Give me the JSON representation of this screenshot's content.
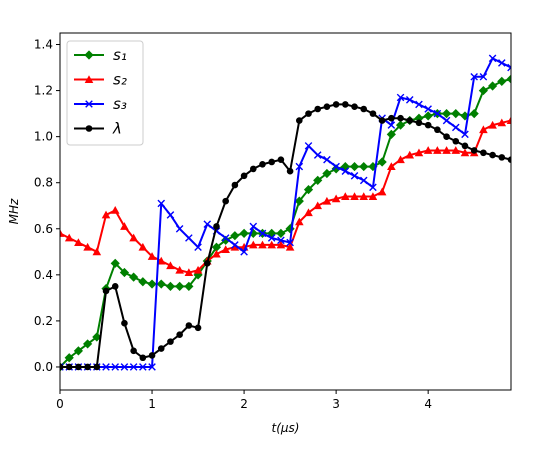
{
  "chart_data": {
    "type": "line",
    "xlabel": "t(μs)",
    "ylabel": "MHz",
    "xlim": [
      0,
      4.9
    ],
    "ylim": [
      -0.1,
      1.45
    ],
    "xticks": [
      0,
      1,
      2,
      3,
      4
    ],
    "yticks": [
      0.0,
      0.2,
      0.4,
      0.6,
      0.8,
      1.0,
      1.2,
      1.4
    ],
    "xtick_labels": [
      "0",
      "1",
      "2",
      "3",
      "4"
    ],
    "ytick_labels": [
      "0.0",
      "0.2",
      "0.4",
      "0.6",
      "0.8",
      "1.0",
      "1.2",
      "1.4"
    ],
    "grid": false,
    "legend_position": "upper-left",
    "series": [
      {
        "name": "s₁",
        "color": "#008000",
        "marker": "diamond",
        "x": [
          0,
          0.1,
          0.2,
          0.3,
          0.4,
          0.5,
          0.6,
          0.7,
          0.8,
          0.9,
          1.0,
          1.1,
          1.2,
          1.3,
          1.4,
          1.5,
          1.6,
          1.7,
          1.8,
          1.9,
          2.0,
          2.1,
          2.2,
          2.3,
          2.4,
          2.5,
          2.6,
          2.7,
          2.8,
          2.9,
          3.0,
          3.1,
          3.2,
          3.3,
          3.4,
          3.5,
          3.6,
          3.7,
          3.8,
          3.9,
          4.0,
          4.1,
          4.2,
          4.3,
          4.4,
          4.5,
          4.6,
          4.7,
          4.8,
          4.9
        ],
        "y": [
          0.0,
          0.04,
          0.07,
          0.1,
          0.13,
          0.34,
          0.45,
          0.41,
          0.39,
          0.37,
          0.36,
          0.36,
          0.35,
          0.35,
          0.35,
          0.4,
          0.46,
          0.52,
          0.55,
          0.57,
          0.58,
          0.58,
          0.58,
          0.58,
          0.58,
          0.6,
          0.72,
          0.77,
          0.81,
          0.84,
          0.86,
          0.87,
          0.87,
          0.87,
          0.87,
          0.89,
          1.01,
          1.05,
          1.07,
          1.08,
          1.09,
          1.1,
          1.1,
          1.1,
          1.09,
          1.1,
          1.2,
          1.22,
          1.24,
          1.25
        ]
      },
      {
        "name": "s₂",
        "color": "#ff0000",
        "marker": "triangle",
        "x": [
          0,
          0.1,
          0.2,
          0.3,
          0.4,
          0.5,
          0.6,
          0.7,
          0.8,
          0.9,
          1.0,
          1.1,
          1.2,
          1.3,
          1.4,
          1.5,
          1.6,
          1.7,
          1.8,
          1.9,
          2.0,
          2.1,
          2.2,
          2.3,
          2.4,
          2.5,
          2.6,
          2.7,
          2.8,
          2.9,
          3.0,
          3.1,
          3.2,
          3.3,
          3.4,
          3.5,
          3.6,
          3.7,
          3.8,
          3.9,
          4.0,
          4.1,
          4.2,
          4.3,
          4.4,
          4.5,
          4.6,
          4.7,
          4.8,
          4.9
        ],
        "y": [
          0.58,
          0.56,
          0.54,
          0.52,
          0.5,
          0.66,
          0.68,
          0.61,
          0.56,
          0.52,
          0.48,
          0.46,
          0.44,
          0.42,
          0.41,
          0.42,
          0.46,
          0.49,
          0.51,
          0.52,
          0.52,
          0.53,
          0.53,
          0.53,
          0.53,
          0.52,
          0.63,
          0.67,
          0.7,
          0.72,
          0.73,
          0.74,
          0.74,
          0.74,
          0.74,
          0.76,
          0.87,
          0.9,
          0.92,
          0.93,
          0.94,
          0.94,
          0.94,
          0.94,
          0.93,
          0.93,
          1.03,
          1.05,
          1.06,
          1.07
        ]
      },
      {
        "name": "s₃",
        "color": "#0000ff",
        "marker": "x",
        "x": [
          0,
          0.1,
          0.2,
          0.3,
          0.4,
          0.5,
          0.6,
          0.7,
          0.8,
          0.9,
          1.0,
          1.1,
          1.2,
          1.3,
          1.4,
          1.5,
          1.6,
          1.7,
          1.8,
          1.9,
          2.0,
          2.1,
          2.2,
          2.3,
          2.4,
          2.5,
          2.6,
          2.7,
          2.8,
          2.9,
          3.0,
          3.1,
          3.2,
          3.3,
          3.4,
          3.5,
          3.6,
          3.7,
          3.8,
          3.9,
          4.0,
          4.1,
          4.2,
          4.3,
          4.4,
          4.5,
          4.6,
          4.7,
          4.8,
          4.9
        ],
        "y": [
          0.0,
          0.0,
          0.0,
          0.0,
          0.0,
          0.0,
          0.0,
          0.0,
          0.0,
          0.0,
          0.0,
          0.71,
          0.66,
          0.6,
          0.56,
          0.52,
          0.62,
          0.59,
          0.56,
          0.53,
          0.5,
          0.61,
          0.58,
          0.56,
          0.55,
          0.54,
          0.87,
          0.96,
          0.92,
          0.9,
          0.87,
          0.85,
          0.83,
          0.81,
          0.78,
          1.08,
          1.05,
          1.17,
          1.16,
          1.14,
          1.12,
          1.1,
          1.07,
          1.04,
          1.01,
          1.26,
          1.26,
          1.34,
          1.32,
          1.3
        ]
      },
      {
        "name": "λ",
        "color": "#000000",
        "marker": "circle",
        "x": [
          0,
          0.1,
          0.2,
          0.3,
          0.4,
          0.5,
          0.6,
          0.7,
          0.8,
          0.9,
          1.0,
          1.1,
          1.2,
          1.3,
          1.4,
          1.5,
          1.6,
          1.7,
          1.8,
          1.9,
          2.0,
          2.1,
          2.2,
          2.3,
          2.4,
          2.5,
          2.6,
          2.7,
          2.8,
          2.9,
          3.0,
          3.1,
          3.2,
          3.3,
          3.4,
          3.5,
          3.6,
          3.7,
          3.8,
          3.9,
          4.0,
          4.1,
          4.2,
          4.3,
          4.4,
          4.5,
          4.6,
          4.7,
          4.8,
          4.9
        ],
        "y": [
          0.0,
          0.0,
          0.0,
          0.0,
          0.0,
          0.33,
          0.35,
          0.19,
          0.07,
          0.04,
          0.05,
          0.08,
          0.11,
          0.14,
          0.18,
          0.17,
          0.45,
          0.61,
          0.72,
          0.79,
          0.83,
          0.86,
          0.88,
          0.89,
          0.9,
          0.85,
          1.07,
          1.1,
          1.12,
          1.13,
          1.14,
          1.14,
          1.13,
          1.12,
          1.1,
          1.07,
          1.08,
          1.08,
          1.07,
          1.06,
          1.05,
          1.03,
          1.0,
          0.98,
          0.96,
          0.94,
          0.93,
          0.92,
          0.91,
          0.9
        ]
      }
    ]
  }
}
